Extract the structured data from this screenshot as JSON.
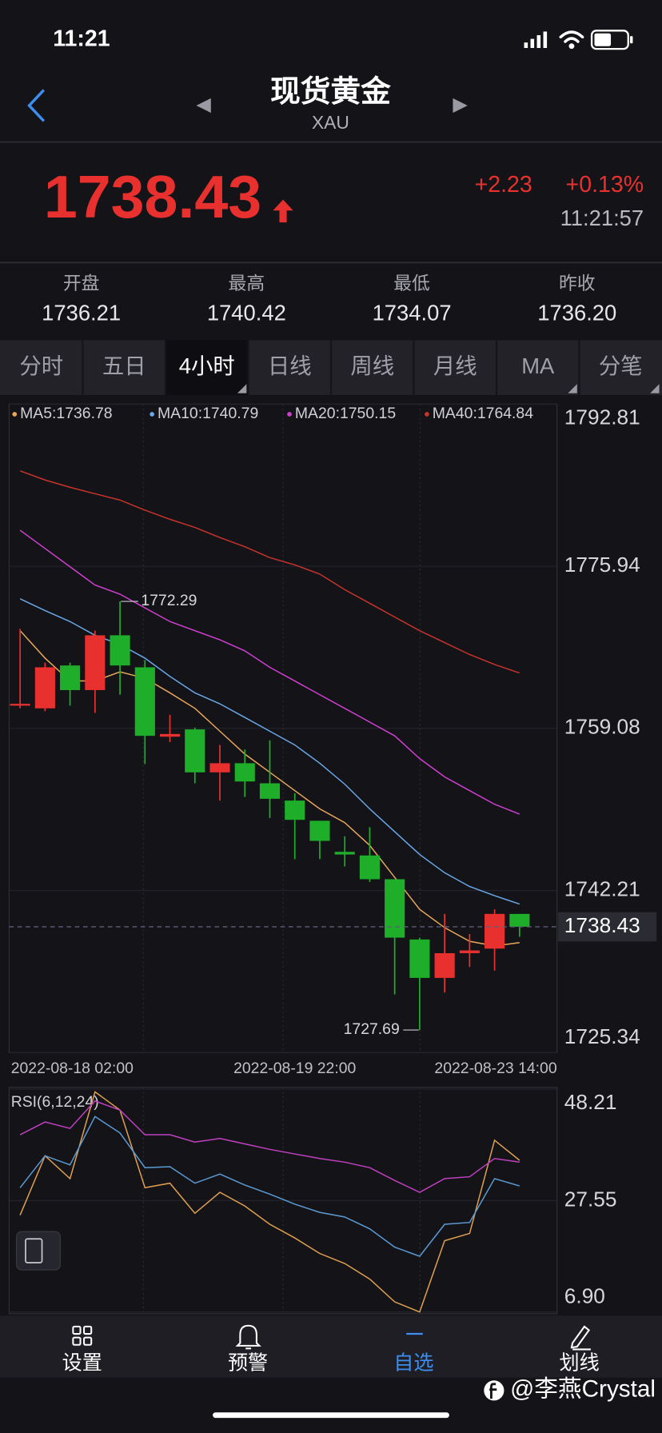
{
  "status_bar": {
    "time": "11:21"
  },
  "header": {
    "title": "现货黄金",
    "symbol": "XAU"
  },
  "quote": {
    "price": "1738.43",
    "change": "+2.23",
    "change_percent": "+0.13%",
    "time": "11:21:57"
  },
  "stats": [
    {
      "label": "开盘",
      "value": "1736.21"
    },
    {
      "label": "最高",
      "value": "1740.42"
    },
    {
      "label": "最低",
      "value": "1734.07"
    },
    {
      "label": "昨收",
      "value": "1736.20"
    }
  ],
  "tabs": {
    "items": [
      "分时",
      "五日",
      "4小时",
      "日线",
      "周线",
      "月线",
      "MA",
      "分笔"
    ],
    "active": 2
  },
  "chart_data": [
    {
      "type": "candlestick",
      "categories": [
        "2022-08-18 02:00",
        null,
        null,
        null,
        null,
        null,
        null,
        null,
        null,
        null,
        null,
        "2022-08-19 22:00",
        null,
        null,
        null,
        null,
        null,
        null,
        null,
        null,
        "2022-08-23 14:00"
      ],
      "open": [
        1761.44,
        1761.16,
        1765.62,
        1763.06,
        1768.76,
        1765.43,
        1758.21,
        1758.97,
        1754.5,
        1755.45,
        1753.36,
        1751.56,
        1749.46,
        1746.23,
        1745.85,
        1743.38,
        1737.11,
        1733.11,
        1735.68,
        1736.16,
        1739.77
      ],
      "high": [
        1769.43,
        1765.91,
        1765.91,
        1769.24,
        1772.29,
        1766.19,
        1760.49,
        1759.16,
        1757.35,
        1756.88,
        1757.83,
        1752.32,
        1749.46,
        1747.85,
        1748.8,
        1743.38,
        1737.3,
        1739.77,
        1737.68,
        1740.24,
        1739.77
      ],
      "low": [
        1761.16,
        1760.87,
        1761.44,
        1760.68,
        1762.58,
        1755.36,
        1757.64,
        1753.36,
        1751.56,
        1751.94,
        1749.75,
        1745.47,
        1745.47,
        1744.71,
        1743.1,
        1731.4,
        1727.69,
        1731.59,
        1734.25,
        1733.87,
        1737.39
      ],
      "close": [
        1761.63,
        1765.43,
        1763.06,
        1768.76,
        1765.62,
        1758.3,
        1758.49,
        1754.5,
        1755.45,
        1753.55,
        1751.75,
        1749.56,
        1747.37,
        1745.95,
        1743.38,
        1737.3,
        1733.11,
        1735.68,
        1735.97,
        1739.77,
        1738.43
      ],
      "up_color": "#e8312f",
      "down_color": "#1fae2a",
      "series": [
        {
          "name": "MA5:1736.78",
          "color": "#e8a85a",
          "values": [
            1769.24,
            1766.38,
            1764.01,
            1764.01,
            1764.96,
            1764.29,
            1762.77,
            1761.16,
            1758.78,
            1756.4,
            1754.5,
            1752.6,
            1750.7,
            1749.27,
            1746.9,
            1743.57,
            1740.24,
            1738.34,
            1736.92,
            1736.44,
            1736.78
          ]
        },
        {
          "name": "MA10:1740.79",
          "color": "#6aa8e8",
          "values": [
            1772.56,
            1771.33,
            1770.19,
            1768.76,
            1767.81,
            1766.38,
            1764.48,
            1762.77,
            1761.63,
            1760.21,
            1758.78,
            1757.35,
            1755.45,
            1753.27,
            1750.7,
            1748.32,
            1745.95,
            1744.05,
            1742.62,
            1741.67,
            1740.79
          ]
        },
        {
          "name": "MA20:1750.15",
          "color": "#d040d0",
          "values": [
            1779.69,
            1777.79,
            1775.89,
            1773.99,
            1773.04,
            1771.61,
            1770.19,
            1769.24,
            1768.29,
            1767.14,
            1765.43,
            1764.01,
            1762.58,
            1761.16,
            1759.73,
            1758.3,
            1755.93,
            1754.03,
            1752.6,
            1751.18,
            1750.15
          ]
        },
        {
          "name": "MA40:1764.84",
          "color": "#c8342c",
          "values": [
            1785.87,
            1784.92,
            1784.16,
            1783.49,
            1782.83,
            1781.78,
            1780.83,
            1779.98,
            1778.93,
            1777.98,
            1776.84,
            1776.08,
            1775.13,
            1773.51,
            1772.09,
            1770.66,
            1769.24,
            1768.0,
            1766.76,
            1765.72,
            1764.84
          ]
        }
      ],
      "ylim": [
        1725.34,
        1792.81
      ],
      "yticks": [
        1725.34,
        1742.21,
        1759.08,
        1775.94,
        1792.81
      ],
      "grid": true
    },
    {
      "type": "line",
      "title": "RSI(6,12,24)",
      "series": [
        {
          "color": "#e0a050",
          "values": [
            24.85,
            35.85,
            31.62,
            47.7,
            44.32,
            29.93,
            30.77,
            25.19,
            29.08,
            26.54,
            23.15,
            20.62,
            17.74,
            15.88,
            13.0,
            8.77,
            6.9,
            20.11,
            21.46,
            38.73,
            35.01
          ]
        },
        {
          "color": "#5b9bd5",
          "values": [
            29.93,
            35.85,
            34.16,
            43.13,
            40.08,
            33.65,
            33.82,
            30.77,
            32.47,
            30.43,
            28.74,
            26.88,
            25.36,
            24.51,
            22.31,
            18.92,
            17.23,
            23.15,
            23.49,
            31.62,
            30.26
          ]
        },
        {
          "color": "#c040c0",
          "values": [
            39.75,
            42.12,
            40.93,
            46.01,
            44.32,
            39.75,
            39.75,
            38.39,
            39.07,
            38.05,
            37.04,
            36.19,
            35.34,
            34.67,
            33.65,
            31.28,
            29.08,
            31.62,
            31.96,
            35.34,
            34.67
          ]
        }
      ],
      "ylim": [
        6.9,
        48.21
      ],
      "yticks": [
        {
          "value": 6.9,
          "label": "6.90"
        },
        27.55,
        48.21
      ],
      "grid": true
    }
  ],
  "bottom_nav": {
    "items": [
      "设置",
      "预警",
      "自选",
      "划线"
    ],
    "active": 2
  },
  "watermark": "@李燕Crystal"
}
